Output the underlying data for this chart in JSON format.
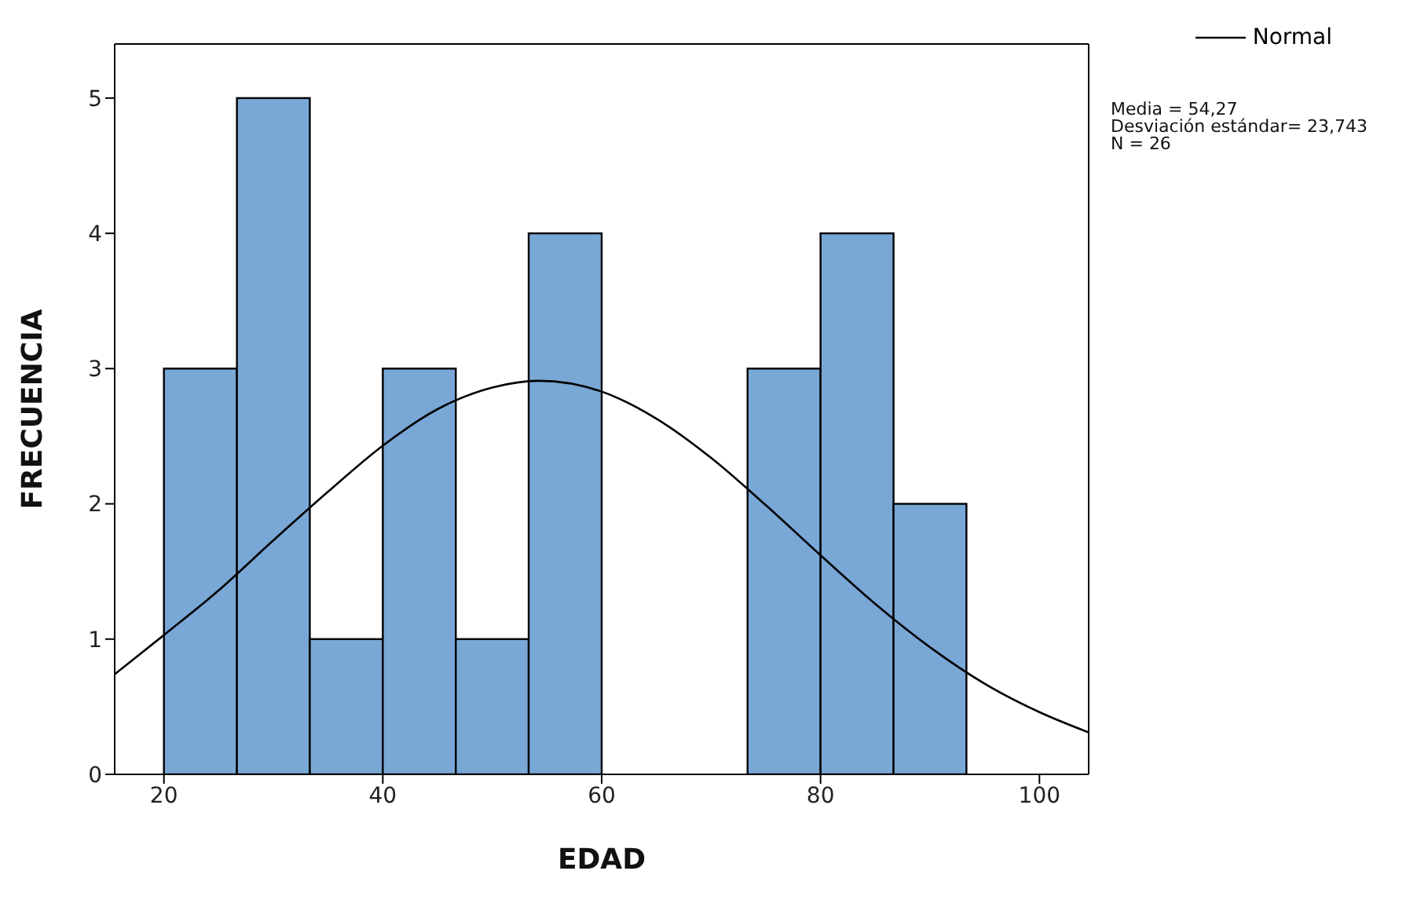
{
  "chart_data": {
    "type": "histogram",
    "xlabel": "EDAD",
    "ylabel": "FRECUENCIA",
    "bins": [
      20,
      26.67,
      33.33,
      40,
      46.67,
      53.33,
      60,
      66.67,
      73.33,
      80,
      86.67,
      93.33
    ],
    "values": [
      3,
      5,
      1,
      3,
      1,
      4,
      0,
      0,
      3,
      4,
      2
    ],
    "color": "#79a7d6",
    "series": [
      {
        "type": "line",
        "name": "Normal",
        "color": "#000000",
        "x": [
          15.5,
          20,
          25,
          30,
          35,
          40,
          45,
          50,
          54.27,
          60,
          65,
          70,
          75,
          80,
          85,
          90,
          95,
          100,
          104.5
        ],
        "values": [
          0.74,
          1.03,
          1.36,
          1.73,
          2.09,
          2.43,
          2.7,
          2.86,
          2.91,
          2.83,
          2.63,
          2.34,
          1.99,
          1.62,
          1.26,
          0.94,
          0.67,
          0.46,
          0.31
        ]
      }
    ],
    "xlim": [
      15.5,
      104.5
    ],
    "xticks": [
      20,
      40,
      60,
      80,
      100
    ],
    "ylim": [
      0,
      5.4
    ],
    "yticks": [
      0,
      1,
      2,
      3,
      4,
      5
    ],
    "grid": false,
    "legend": "top right",
    "annotations": [
      "Media = 54,27",
      "Desviación estándar= 23,743",
      "N = 26"
    ]
  }
}
